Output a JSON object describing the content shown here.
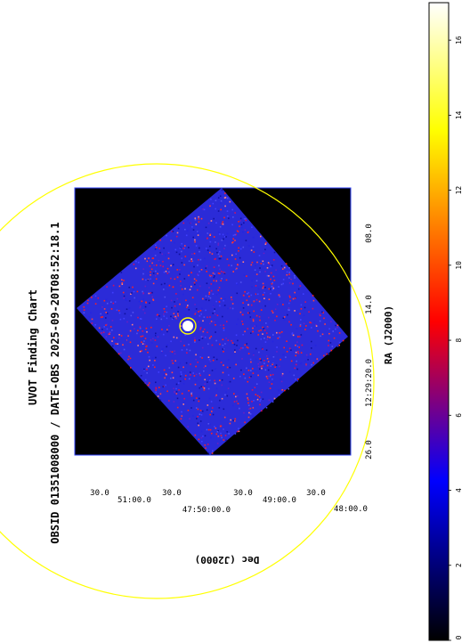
{
  "title": "UVOT Finding Chart",
  "subtitle": "OBSID 01351008000 / DATE-OBS 2025-09-20T08:52:18.1",
  "chart_data": {
    "type": "heatmap",
    "title": "UVOT Finding Chart",
    "subtitle": "OBSID 01351008000 / DATE-OBS 2025-09-20T08:52:18.1",
    "xlabel": "RA (J2000)",
    "ylabel": "Dec (J2000)",
    "x_ticks": [
      "26.0",
      "12:29:20.0",
      "14.0",
      "08.0"
    ],
    "y_ticks": [
      "30.0",
      "51:00.0",
      "30.0",
      "47:50:00.0",
      "30.0",
      "49:00.0",
      "30.0",
      "48:00.0"
    ],
    "colorbar": {
      "ticks": [
        "0",
        "2",
        "4",
        "6",
        "8",
        "10",
        "12",
        "14",
        "16"
      ],
      "range": [
        0,
        17
      ],
      "colormap": [
        "#000000",
        "#0000ff",
        "#ff0000",
        "#ffff00",
        "#ffffff"
      ]
    },
    "region_color": "#ffff00",
    "background_color": "#000000",
    "grid": false
  }
}
